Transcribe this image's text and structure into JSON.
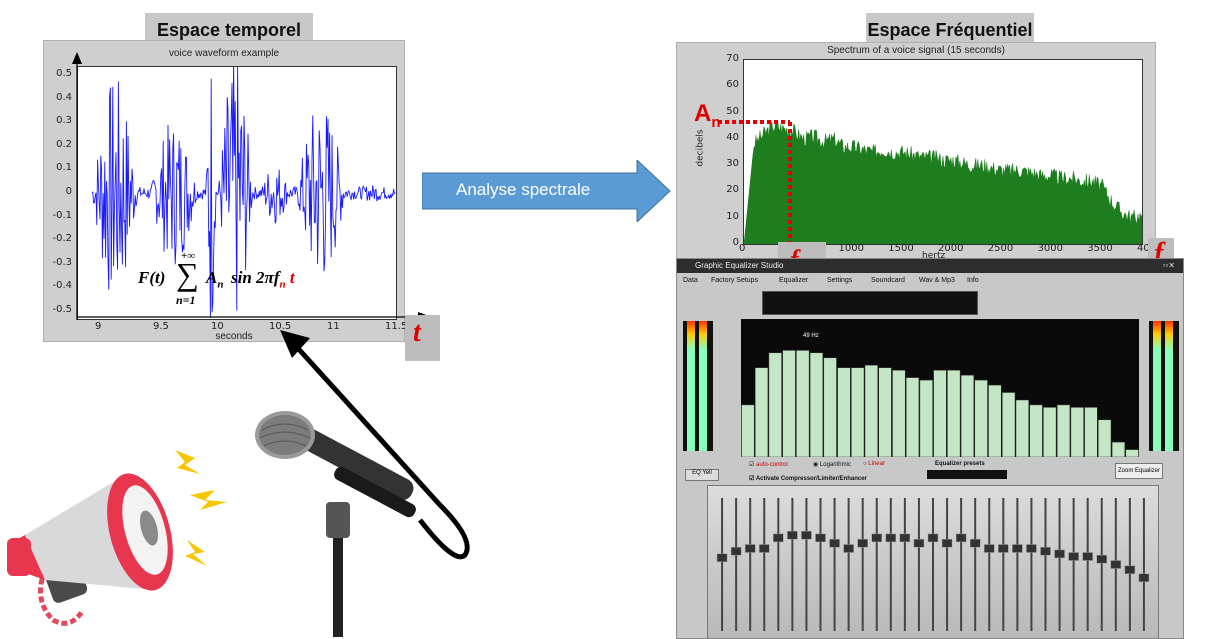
{
  "left_header": "Espace temporel",
  "right_header": "Espace Fréquentiel",
  "arrow_label": "Analyse spectrale",
  "waveform": {
    "title": "voice waveform example",
    "xlabel": "seconds",
    "yticks": [
      "0.5",
      "0.4",
      "0.3",
      "0.2",
      "0.1",
      "0",
      "-0.1",
      "-0.2",
      "-0.3",
      "-0.4",
      "-0.5"
    ],
    "xticks": [
      "9",
      "9.5",
      "10",
      "10.5",
      "11",
      "11.5"
    ],
    "color": "#1a1aff"
  },
  "formula": {
    "lhs": "F(t)",
    "sum_upper": "+∞",
    "sum_lower": "n=1",
    "term_a": "A",
    "term_sub": "n",
    "term_sin": "sin 2πf",
    "term_t": "t"
  },
  "time_axis_label": "t",
  "freq_axis_label": "f",
  "fn_label": "f",
  "fn_sub": "n",
  "an_label": "A",
  "an_sub": "n",
  "chart_data": {
    "type": "area",
    "title": "Spectrum of a voice signal (15 seconds)",
    "xlabel": "hertz",
    "ylabel": "decibels",
    "xlim": [
      0,
      4000
    ],
    "ylim": [
      0,
      70
    ],
    "xticks": [
      "0",
      "500",
      "1000",
      "1500",
      "2000",
      "2500",
      "3000",
      "3500",
      "400"
    ],
    "yticks": [
      "70",
      "60",
      "50",
      "40",
      "30",
      "20",
      "10",
      "0"
    ],
    "color": "#1e7d1e",
    "x": [
      0,
      100,
      200,
      300,
      400,
      500,
      600,
      700,
      800,
      900,
      1000,
      1100,
      1200,
      1300,
      1400,
      1500,
      1600,
      1700,
      1800,
      1900,
      2000,
      2100,
      2200,
      2300,
      2400,
      2500,
      2600,
      2700,
      2800,
      2900,
      3000,
      3100,
      3200,
      3300,
      3400,
      3500,
      3600,
      3700,
      3800,
      3900,
      4000
    ],
    "y": [
      0,
      38,
      42,
      45,
      44,
      43,
      40,
      41,
      39,
      40,
      37,
      37,
      36,
      35,
      36,
      35,
      35,
      34,
      33,
      33,
      32,
      32,
      31,
      30,
      30,
      29,
      28,
      28,
      28,
      27,
      26,
      26,
      25,
      25,
      24,
      24,
      22,
      16,
      12,
      10,
      11
    ]
  },
  "equalizer": {
    "title": "Graphic Equalizer Studio",
    "menu": [
      "Data",
      "Factory Setups",
      "Equalizer",
      "Settings",
      "Soundcard",
      "Wav & Mp3",
      "Info"
    ],
    "peak_label": "49 Hz",
    "auto_control": "auto-control",
    "log_option": "Logarithmic",
    "linear_option": "Linear",
    "presets_label": "Equalizer presets",
    "activate_label": "Activate Compressor/Limiter/Enhancer",
    "zoom_label": "Zoom Equalizer",
    "eq_btn": "EQ Yell",
    "bars": [
      0.42,
      0.72,
      0.84,
      0.86,
      0.86,
      0.84,
      0.8,
      0.72,
      0.72,
      0.74,
      0.72,
      0.7,
      0.64,
      0.62,
      0.7,
      0.7,
      0.66,
      0.62,
      0.58,
      0.52,
      0.46,
      0.42,
      0.4,
      0.42,
      0.4,
      0.4,
      0.3,
      0.12,
      0.06
    ],
    "sliders": [
      0.55,
      0.6,
      0.62,
      0.62,
      0.7,
      0.72,
      0.72,
      0.7,
      0.66,
      0.62,
      0.66,
      0.7,
      0.7,
      0.7,
      0.66,
      0.7,
      0.66,
      0.7,
      0.66,
      0.62,
      0.62,
      0.62,
      0.62,
      0.6,
      0.58,
      0.56,
      0.56,
      0.54,
      0.5,
      0.46,
      0.4
    ]
  }
}
